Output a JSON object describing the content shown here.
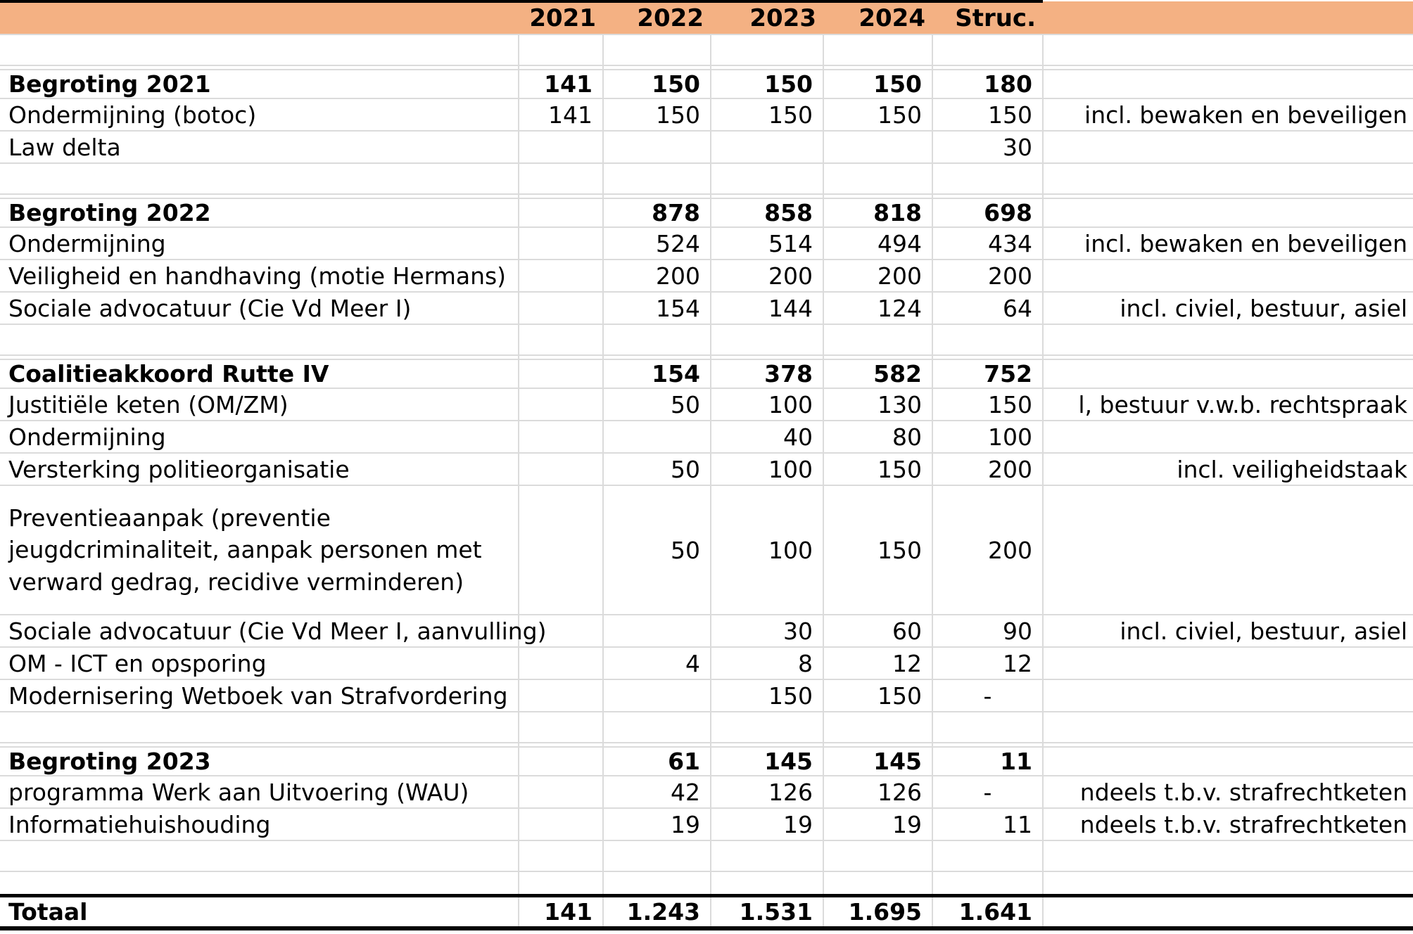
{
  "colors": {
    "header_bg": "#F4B183",
    "grid": "#DBDBDB",
    "border": "#000000"
  },
  "table": {
    "columns": [
      "",
      "2021",
      "2022",
      "2023",
      "2024",
      "Struc.",
      ""
    ],
    "rows": [
      {
        "id": "blank-after-header",
        "type": "blank",
        "label": "",
        "v": [
          "",
          "",
          "",
          "",
          ""
        ],
        "note": ""
      },
      {
        "id": "spacer-1",
        "type": "spacer",
        "label": "",
        "v": [
          "",
          "",
          "",
          "",
          ""
        ],
        "note": ""
      },
      {
        "id": "begroting-2021",
        "type": "section",
        "label": "Begroting 2021",
        "v": [
          "141",
          "150",
          "150",
          "150",
          "180"
        ],
        "note": ""
      },
      {
        "id": "ondermijning-botoc",
        "type": "row",
        "label": "Ondermijning (botoc)",
        "v": [
          "141",
          "150",
          "150",
          "150",
          "150"
        ],
        "note": "incl. bewaken en beveiligen"
      },
      {
        "id": "law-delta",
        "type": "row",
        "label": "Law delta",
        "v": [
          "",
          "",
          "",
          "",
          "30"
        ],
        "note": ""
      },
      {
        "id": "blank-2",
        "type": "blank",
        "label": "",
        "v": [
          "",
          "",
          "",
          "",
          ""
        ],
        "note": ""
      },
      {
        "id": "spacer-2",
        "type": "spacer",
        "label": "",
        "v": [
          "",
          "",
          "",
          "",
          ""
        ],
        "note": ""
      },
      {
        "id": "begroting-2022",
        "type": "section",
        "label": "Begroting 2022",
        "v": [
          "",
          "878",
          "858",
          "818",
          "698"
        ],
        "note": ""
      },
      {
        "id": "ondermijning-2022",
        "type": "row",
        "label": "Ondermijning",
        "v": [
          "",
          "524",
          "514",
          "494",
          "434"
        ],
        "note": "incl. bewaken en beveiligen"
      },
      {
        "id": "veiligheid-handhaving",
        "type": "row",
        "label": "Veiligheid en handhaving (motie Hermans)",
        "v": [
          "",
          "200",
          "200",
          "200",
          "200"
        ],
        "note": ""
      },
      {
        "id": "sociale-advocatuur-1",
        "type": "row",
        "label": "Sociale advocatuur (Cie Vd Meer I)",
        "v": [
          "",
          "154",
          "144",
          "124",
          "64"
        ],
        "note": "incl. civiel, bestuur, asiel"
      },
      {
        "id": "blank-3",
        "type": "blank",
        "label": "",
        "v": [
          "",
          "",
          "",
          "",
          ""
        ],
        "note": ""
      },
      {
        "id": "spacer-3",
        "type": "spacer",
        "label": "",
        "v": [
          "",
          "",
          "",
          "",
          ""
        ],
        "note": ""
      },
      {
        "id": "coalitieakkoord-rutte-iv",
        "type": "section",
        "label": "Coalitieakkoord Rutte IV",
        "v": [
          "",
          "154",
          "378",
          "582",
          "752"
        ],
        "note": ""
      },
      {
        "id": "justitiele-keten",
        "type": "row",
        "label": "Justitiële keten (OM/ZM)",
        "v": [
          "",
          "50",
          "100",
          "130",
          "150"
        ],
        "note": "l, bestuur v.w.b. rechtspraak"
      },
      {
        "id": "ondermijning-ca",
        "type": "row",
        "label": "Ondermijning",
        "v": [
          "",
          "",
          "40",
          "80",
          "100"
        ],
        "note": ""
      },
      {
        "id": "versterking-politieorganisatie",
        "type": "row",
        "label": "Versterking politieorganisatie",
        "v": [
          "",
          "50",
          "100",
          "150",
          "200"
        ],
        "note": "incl. veiligheidstaak"
      },
      {
        "id": "preventieaanpak",
        "type": "tall",
        "label": "Preventieaanpak (preventie\njeugdcriminaliteit, aanpak personen met\nverward gedrag, recidive verminderen)",
        "v": [
          "",
          "50",
          "100",
          "150",
          "200"
        ],
        "note": ""
      },
      {
        "id": "sociale-advocatuur-aanvulling",
        "type": "row",
        "label": "Sociale advocatuur (Cie Vd Meer I, aanvulling)",
        "v": [
          "",
          "",
          "30",
          "60",
          "90"
        ],
        "note": "incl. civiel, bestuur, asiel"
      },
      {
        "id": "om-ict-opsporing",
        "type": "row",
        "label": "OM - ICT en opsporing",
        "v": [
          "",
          "4",
          "8",
          "12",
          "12"
        ],
        "note": ""
      },
      {
        "id": "modernisering-wetboek",
        "type": "row",
        "label": "Modernisering Wetboek van Strafvordering",
        "v": [
          "",
          "",
          "150",
          "150",
          "-"
        ],
        "note": ""
      },
      {
        "id": "blank-4",
        "type": "blank",
        "label": "",
        "v": [
          "",
          "",
          "",
          "",
          ""
        ],
        "note": ""
      },
      {
        "id": "spacer-4",
        "type": "spacer",
        "label": "",
        "v": [
          "",
          "",
          "",
          "",
          ""
        ],
        "note": ""
      },
      {
        "id": "begroting-2023",
        "type": "section",
        "label": "Begroting 2023",
        "v": [
          "",
          "61",
          "145",
          "145",
          "11"
        ],
        "note": ""
      },
      {
        "id": "programma-wau",
        "type": "row",
        "label": "programma Werk aan Uitvoering (WAU)",
        "v": [
          "",
          "42",
          "126",
          "126",
          "-"
        ],
        "note": "ndeels t.b.v. strafrechtketen"
      },
      {
        "id": "informatiehuishouding",
        "type": "row",
        "label": "Informatiehuishouding",
        "v": [
          "",
          "19",
          "19",
          "19",
          "11"
        ],
        "note": "ndeels t.b.v. strafrechtketen"
      },
      {
        "id": "blank-5",
        "type": "blank",
        "label": "",
        "v": [
          "",
          "",
          "",
          "",
          ""
        ],
        "note": ""
      },
      {
        "id": "blank-6",
        "type": "blank_short",
        "label": "",
        "v": [
          "",
          "",
          "",
          "",
          ""
        ],
        "note": ""
      },
      {
        "id": "totaal",
        "type": "total",
        "label": "Totaal",
        "v": [
          "141",
          "1.243",
          "1.531",
          "1.695",
          "1.641"
        ],
        "note": ""
      }
    ]
  }
}
